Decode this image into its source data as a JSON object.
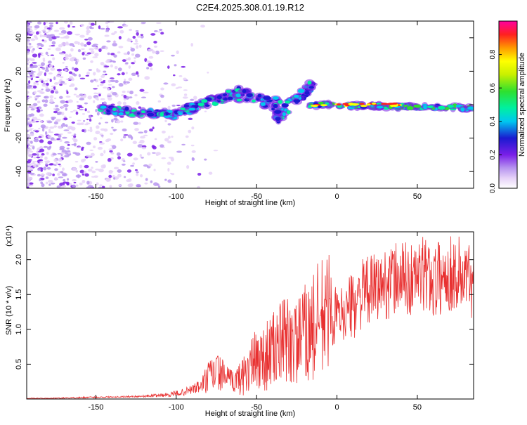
{
  "title": "C2E4.2025.308.01.19.R12",
  "spectrogram": {
    "xlabel": "Height of straight line (km)",
    "ylabel": "Frequency (Hz)",
    "xlim": [
      -193,
      85
    ],
    "ylim": [
      -50,
      50
    ],
    "xticks": [
      -150,
      -100,
      -50,
      0,
      50
    ],
    "xtick_labels": [
      "-150",
      "-100",
      "-50",
      "0",
      "50"
    ],
    "yticks": [
      -40,
      -20,
      0,
      20,
      40
    ],
    "ytick_labels": [
      "-40",
      "-20",
      "0",
      "20",
      "40"
    ]
  },
  "colorbar": {
    "label": "Normalized spectral amplitude",
    "range": [
      0,
      1
    ],
    "ticks": [
      0.0,
      0.2,
      0.4,
      0.6,
      0.8
    ],
    "tick_labels": [
      "0.0",
      "0.2",
      "0.4",
      "0.6",
      "0.8"
    ]
  },
  "chart_data": {
    "type": "line",
    "title": "",
    "xlabel": "Height of straight line (km)",
    "ylabel": "SNR (10 * v/v)",
    "scale_label": "(x10⁴)",
    "xlim": [
      -193,
      85
    ],
    "ylim": [
      0,
      2.4
    ],
    "xticks": [
      -150,
      -100,
      -50,
      0,
      50
    ],
    "xtick_labels": [
      "-150",
      "-100",
      "-50",
      "0",
      "50"
    ],
    "yticks": [
      0.5,
      1.0,
      1.5,
      2.0
    ],
    "ytick_labels": [
      "0.5",
      "1.0",
      "1.5",
      "2.0"
    ],
    "series": [
      {
        "name": "SNR",
        "color": "#e83030",
        "x": [
          -193,
          -180,
          -160,
          -140,
          -120,
          -105,
          -95,
          -85,
          -80,
          -75,
          -70,
          -65,
          -60,
          -55,
          -50,
          -45,
          -40,
          -35,
          -30,
          -25,
          -20,
          -15,
          -10,
          -5,
          0,
          5,
          10,
          15,
          20,
          25,
          30,
          35,
          40,
          45,
          50,
          55,
          60,
          65,
          70,
          75,
          80,
          85
        ],
        "y": [
          0.01,
          0.01,
          0.02,
          0.03,
          0.04,
          0.06,
          0.1,
          0.18,
          0.3,
          0.4,
          0.33,
          0.25,
          0.3,
          0.45,
          0.55,
          0.6,
          0.7,
          0.8,
          0.85,
          0.8,
          0.95,
          1.0,
          1.1,
          1.3,
          1.2,
          1.25,
          1.35,
          1.5,
          1.55,
          1.6,
          1.65,
          1.7,
          1.75,
          1.7,
          1.75,
          1.8,
          1.7,
          1.75,
          1.8,
          1.8,
          1.75,
          1.7
        ],
        "noise": [
          0.005,
          0.005,
          0.01,
          0.01,
          0.015,
          0.03,
          0.05,
          0.1,
          0.25,
          0.3,
          0.2,
          0.15,
          0.25,
          0.4,
          0.45,
          0.5,
          0.55,
          0.6,
          0.7,
          0.6,
          0.7,
          0.8,
          1.0,
          0.8,
          0.35,
          0.4,
          0.5,
          0.5,
          0.5,
          0.5,
          0.5,
          0.55,
          0.55,
          0.55,
          0.55,
          0.55,
          0.55,
          0.55,
          0.55,
          0.6,
          0.55,
          0.55
        ]
      }
    ]
  }
}
